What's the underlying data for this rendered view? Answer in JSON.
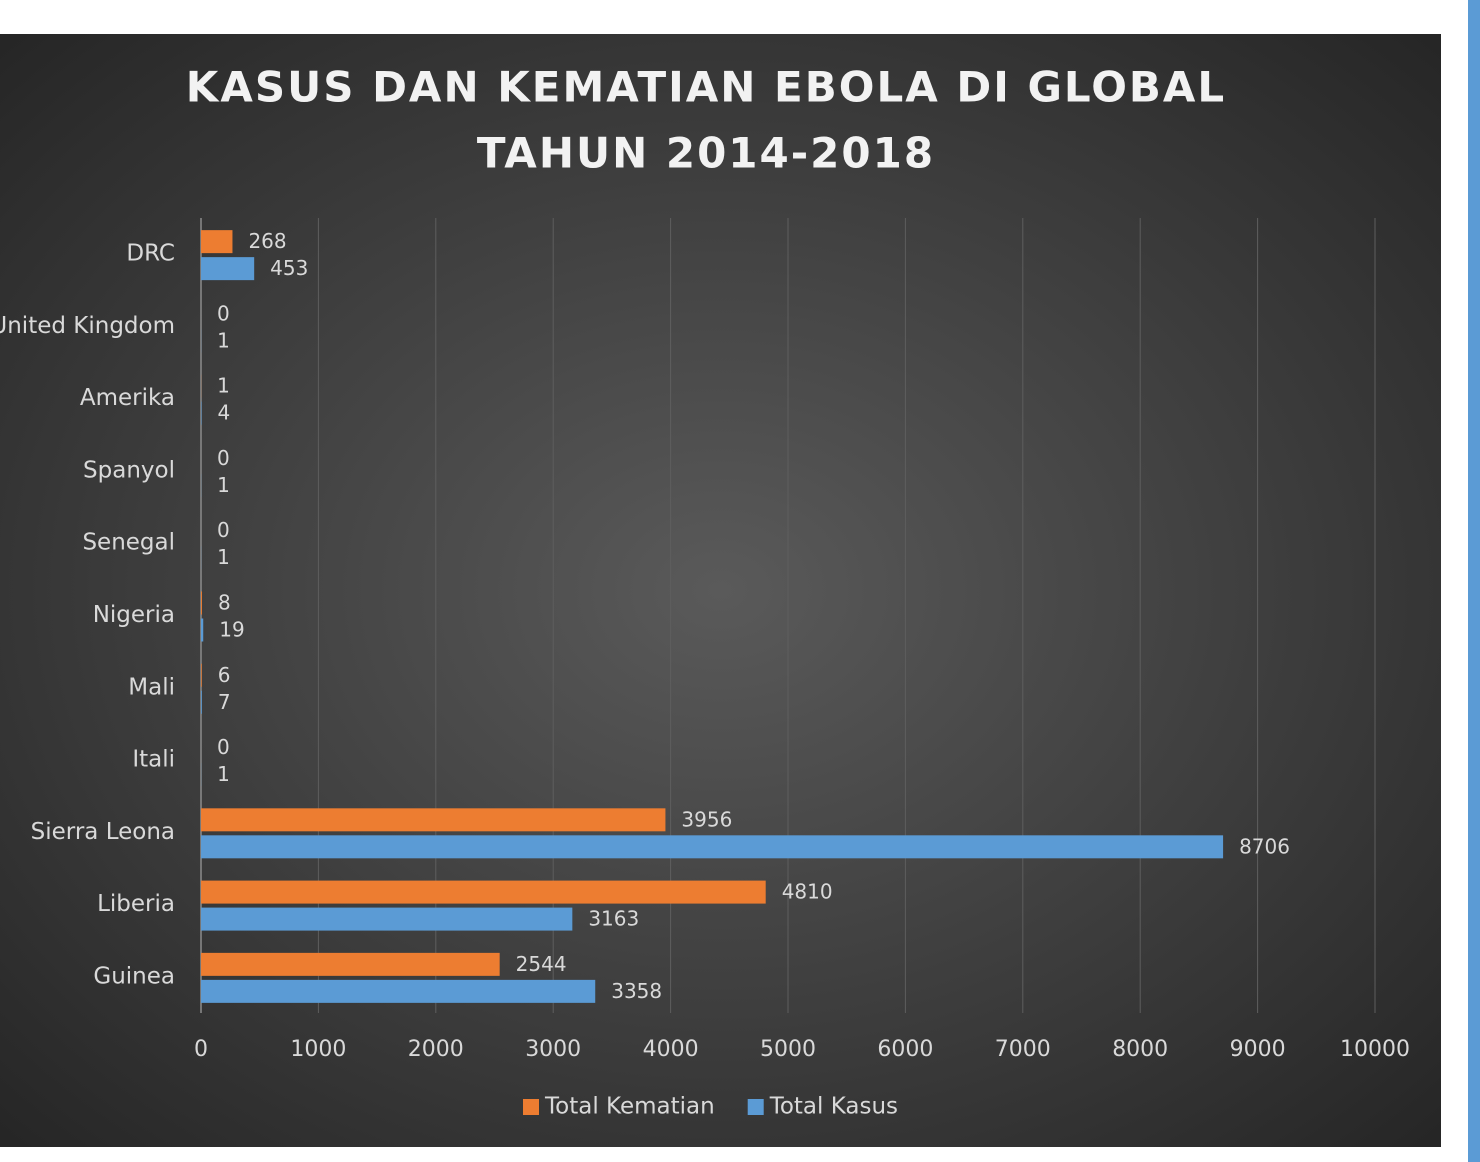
{
  "chart_data": {
    "type": "barh",
    "title": [
      "KASUS DAN KEMATIAN EBOLA DI GLOBAL",
      "TAHUN 2014-2018"
    ],
    "categories": [
      "Guinea",
      "Liberia",
      "Sierra Leona",
      "Itali",
      "Mali",
      "Nigeria",
      "Senegal",
      "Spanyol",
      "Amerika",
      "United Kingdom",
      "DRC"
    ],
    "series": [
      {
        "name": "Total Kematian",
        "color": "#ed7d31",
        "values": [
          2544,
          4810,
          3956,
          0,
          6,
          8,
          0,
          0,
          1,
          0,
          268
        ]
      },
      {
        "name": "Total Kasus",
        "color": "#5b9bd5",
        "values": [
          3358,
          3163,
          8706,
          1,
          7,
          19,
          1,
          1,
          4,
          1,
          453
        ]
      }
    ],
    "xlim": [
      0,
      10000
    ],
    "xticks": [
      0,
      1000,
      2000,
      3000,
      4000,
      5000,
      6000,
      7000,
      8000,
      9000,
      10000
    ],
    "grid": true,
    "legend": "bottom"
  }
}
